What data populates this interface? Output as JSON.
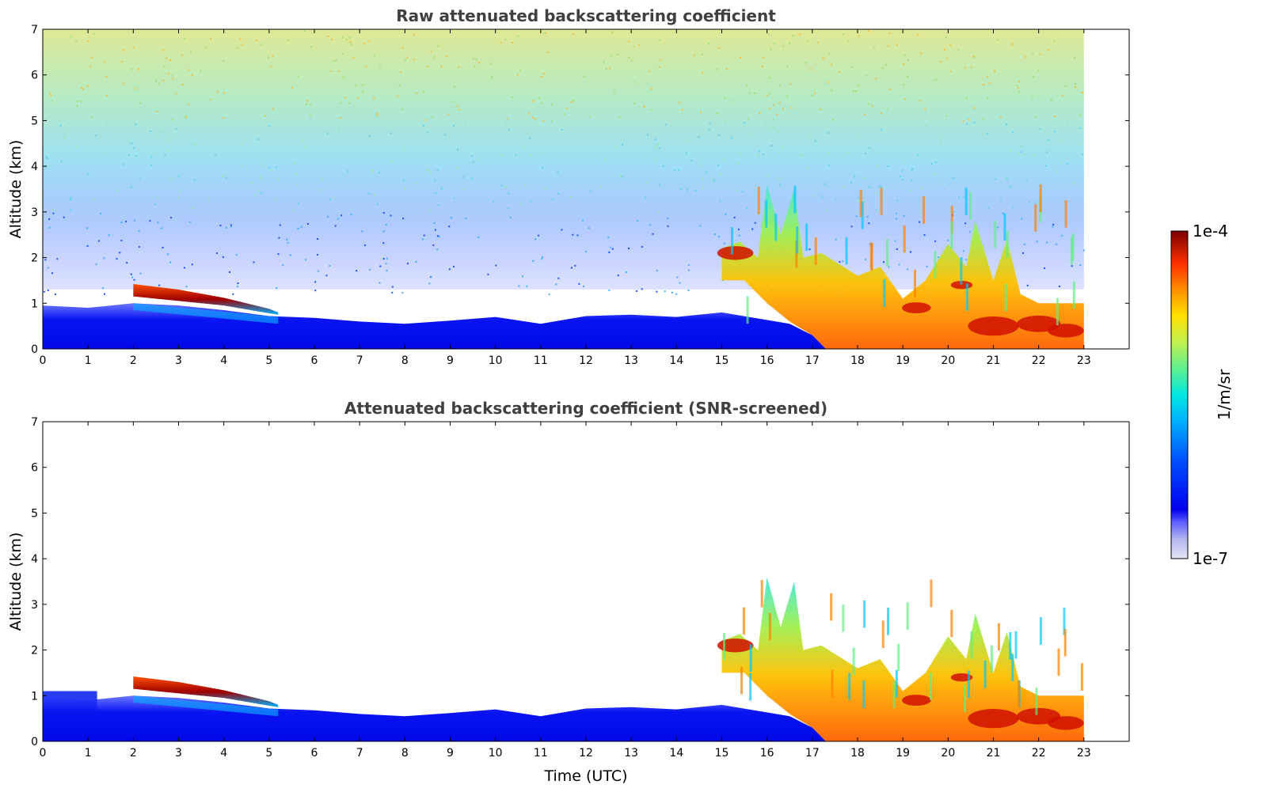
{
  "chart_data": [
    {
      "type": "heatmap",
      "title": "Raw attenuated backscattering coefficient",
      "xlabel": "",
      "ylabel": "Altitude (km)",
      "xlim": [
        0,
        24
      ],
      "ylim": [
        0,
        7
      ],
      "x_ticks": [
        "0",
        "1",
        "2",
        "3",
        "4",
        "5",
        "6",
        "7",
        "8",
        "9",
        "10",
        "11",
        "12",
        "13",
        "14",
        "15",
        "16",
        "17",
        "18",
        "19",
        "20",
        "21",
        "22",
        "23"
      ],
      "y_ticks": [
        "0",
        "1",
        "2",
        "3",
        "4",
        "5",
        "6",
        "7"
      ],
      "data_extent_hours": [
        0,
        23
      ],
      "features": [
        {
          "label": "boundary-layer",
          "t": [
            0,
            23
          ],
          "top_km": [
            0.9,
            0.6,
            0.4
          ]
        },
        {
          "label": "aerosol-layer",
          "t": [
            2,
            5.2
          ],
          "alt_km": [
            1.25,
            0.8
          ]
        },
        {
          "label": "convective-clouds",
          "t": [
            15,
            23
          ],
          "alt_km": [
            0,
            3.6
          ]
        },
        {
          "label": "noise",
          "t": [
            0,
            23
          ],
          "alt_km": [
            1.5,
            7
          ]
        }
      ]
    },
    {
      "type": "heatmap",
      "title": "Attenuated backscattering coefficient (SNR-screened)",
      "xlabel": "Time (UTC)",
      "ylabel": "Altitude (km)",
      "xlim": [
        0,
        24
      ],
      "ylim": [
        0,
        7
      ],
      "x_ticks": [
        "0",
        "1",
        "2",
        "3",
        "4",
        "5",
        "6",
        "7",
        "8",
        "9",
        "10",
        "11",
        "12",
        "13",
        "14",
        "15",
        "16",
        "17",
        "18",
        "19",
        "20",
        "21",
        "22",
        "23"
      ],
      "y_ticks": [
        "0",
        "1",
        "2",
        "3",
        "4",
        "5",
        "6",
        "7"
      ],
      "data_extent_hours": [
        0,
        23
      ]
    }
  ],
  "colorbar": {
    "label": "1/m/sr",
    "max_label": "1e-4",
    "min_label": "1e-7",
    "scale": "log",
    "colors": [
      "#e6e6f7",
      "#b3b3ee",
      "#8080ee",
      "#3333ff",
      "#0000ee",
      "#0050ff",
      "#00a0ff",
      "#00e0f0",
      "#40f0b0",
      "#90f070",
      "#e0f040",
      "#ffd000",
      "#ff9000",
      "#ff4000",
      "#e00000",
      "#800000"
    ]
  }
}
